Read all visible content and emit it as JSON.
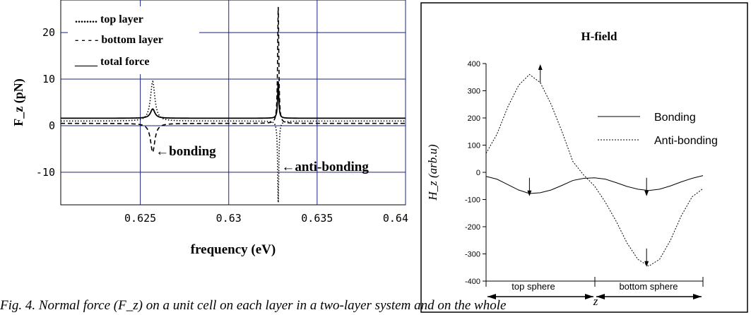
{
  "chart_data": [
    {
      "type": "line",
      "title": "",
      "xlabel": "frequency (eV)",
      "ylabel": "F_z (pN)",
      "xlim": [
        0.6205,
        0.64
      ],
      "ylim": [
        -17,
        27
      ],
      "x_ticks": [
        0.625,
        0.63,
        0.635,
        0.64
      ],
      "x_tick_labels": [
        "0.625",
        "0.63",
        "0.635",
        "0.64"
      ],
      "y_ticks": [
        -10,
        0,
        10,
        20
      ],
      "y_tick_labels": [
        "-10",
        "0",
        "10",
        "20"
      ],
      "grid": true,
      "grid_color": "#1a237e",
      "legend": [
        {
          "label": "........ top layer",
          "style": "dotted"
        },
        {
          "label": "- - - - bottom layer",
          "style": "dashed"
        },
        {
          "label": "____ total force",
          "style": "solid"
        }
      ],
      "annotations": [
        {
          "text": "←bonding",
          "x": 0.6257,
          "y": -5.5
        },
        {
          "text": "←anti-bonding",
          "x": 0.6329,
          "y": -8.8
        }
      ],
      "resonances": [
        {
          "name": "bonding",
          "x0": 0.6257,
          "top": 9.5,
          "bottom": -5.7,
          "total": 3.6,
          "width": 0.00015
        },
        {
          "name": "anti-bonding",
          "x0": 0.6328,
          "top": -16.5,
          "bottom": 25.5,
          "total": 9.5,
          "width": 4e-05
        }
      ],
      "baselines": {
        "top": 1.0,
        "bottom": 0.5,
        "total": 1.6
      }
    },
    {
      "type": "line",
      "title": "H-field",
      "xlabel": "z",
      "ylabel": "H_z (arb.u)",
      "ylim": [
        -400,
        400
      ],
      "y_ticks": [
        -400,
        -300,
        -200,
        -100,
        0,
        100,
        200,
        300,
        400
      ],
      "y_tick_labels": [
        "-400",
        "-300",
        "-200",
        "-100",
        "0",
        "100",
        "200",
        "300",
        "400"
      ],
      "legend_position": "top-right",
      "series": [
        {
          "name": "Bonding",
          "style": "solid",
          "x": [
            0,
            0.05,
            0.1,
            0.15,
            0.2,
            0.25,
            0.3,
            0.35,
            0.4,
            0.45,
            0.5,
            0.55,
            0.6,
            0.65,
            0.7,
            0.75,
            0.8,
            0.85,
            0.9,
            0.95,
            1.0
          ],
          "values": [
            -15,
            -25,
            -45,
            -65,
            -78,
            -75,
            -65,
            -48,
            -30,
            -22,
            -20,
            -25,
            -38,
            -52,
            -62,
            -67,
            -62,
            -50,
            -35,
            -22,
            -12
          ]
        },
        {
          "name": "Anti-bonding",
          "style": "dotted",
          "x": [
            0,
            0.05,
            0.1,
            0.15,
            0.2,
            0.25,
            0.3,
            0.35,
            0.4,
            0.45,
            0.5,
            0.55,
            0.6,
            0.65,
            0.7,
            0.75,
            0.8,
            0.85,
            0.9,
            0.95,
            1.0
          ],
          "values": [
            70,
            140,
            240,
            320,
            360,
            330,
            250,
            150,
            40,
            -10,
            -50,
            -110,
            -180,
            -260,
            -320,
            -345,
            -320,
            -250,
            -160,
            -90,
            -60
          ]
        }
      ],
      "arrows": [
        {
          "x": 0.25,
          "y": 330,
          "direction": "up"
        },
        {
          "x": 0.2,
          "y": -20,
          "direction": "down"
        },
        {
          "x": 0.74,
          "y": -20,
          "direction": "down"
        },
        {
          "x": 0.74,
          "y": -280,
          "direction": "down"
        }
      ],
      "region_labels": [
        "top sphere",
        "bottom sphere"
      ]
    }
  ],
  "caption": "Fig. 4. Normal force (F_z) on a unit cell on each layer in a two-layer system and on the whole"
}
